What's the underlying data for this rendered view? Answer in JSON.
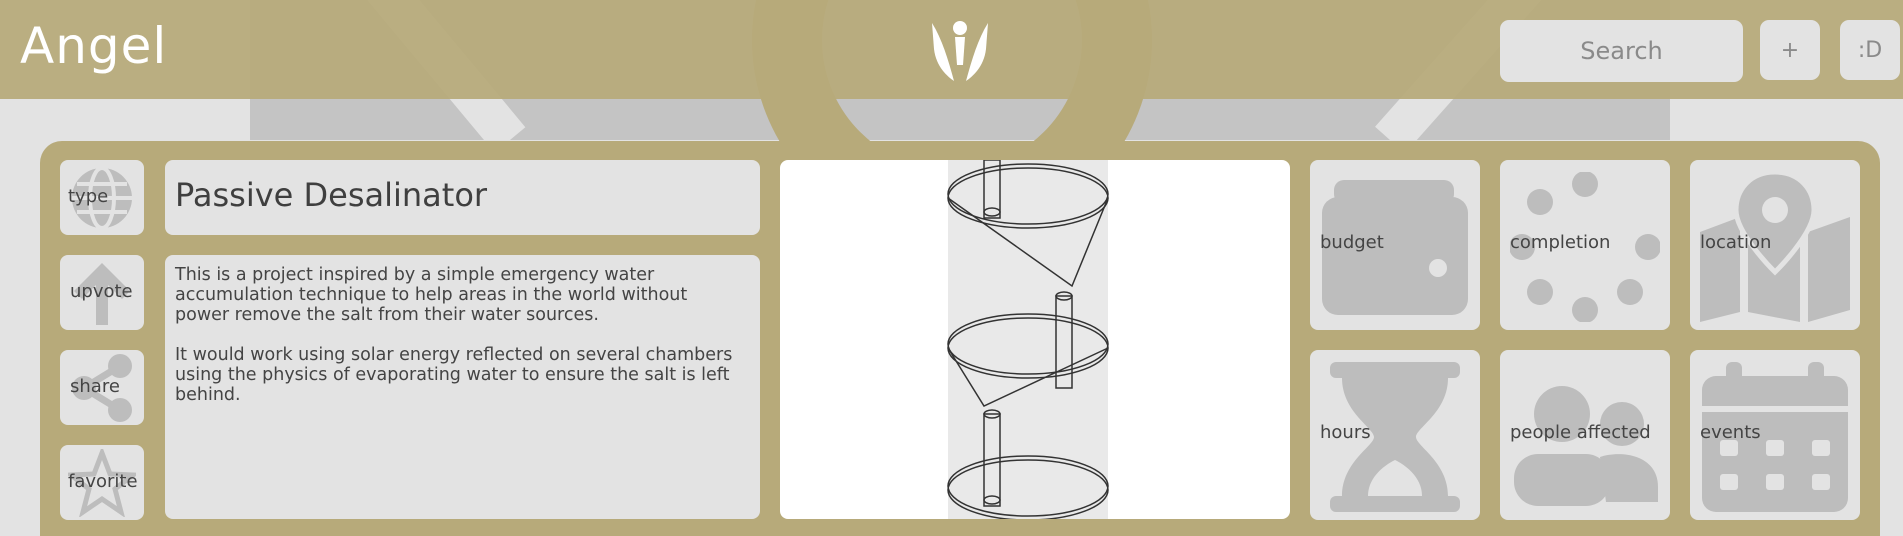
{
  "header": {
    "app_title": "Angel",
    "logo_icon": "angel-logo-icon",
    "search_placeholder": "Search",
    "add_label": "+",
    "profile_label": ":D"
  },
  "colors": {
    "header_bg": "#b7aa7a",
    "panel_bg": "#b7aa7a",
    "tile_bg": "#e3e3e3",
    "icon_gray": "#bdbdbd",
    "text_dark": "#444444"
  },
  "sidebar": {
    "items": [
      {
        "label": "type",
        "icon": "globe-icon"
      },
      {
        "label": "upvote",
        "icon": "arrow-up-icon"
      },
      {
        "label": "share",
        "icon": "share-icon"
      },
      {
        "label": "favorite",
        "icon": "star-icon"
      }
    ]
  },
  "project": {
    "title": "Passive Desalinator",
    "description": [
      "This is a project inspired by a simple emergency water accumulation technique to help areas in the world without power remove the salt from their water sources.",
      "It would work using solar energy reflected on several chambers using the physics of evaporating water to ensure the salt is left behind."
    ],
    "image_icon": "desalinator-diagram-icon"
  },
  "stats": [
    {
      "label": "budget",
      "icon": "wallet-icon"
    },
    {
      "label": "completion",
      "icon": "spinner-icon"
    },
    {
      "label": "location",
      "icon": "map-icon"
    },
    {
      "label": "hours",
      "icon": "hourglass-icon"
    },
    {
      "label": "people affected",
      "icon": "people-icon"
    },
    {
      "label": "events",
      "icon": "calendar-icon"
    }
  ]
}
